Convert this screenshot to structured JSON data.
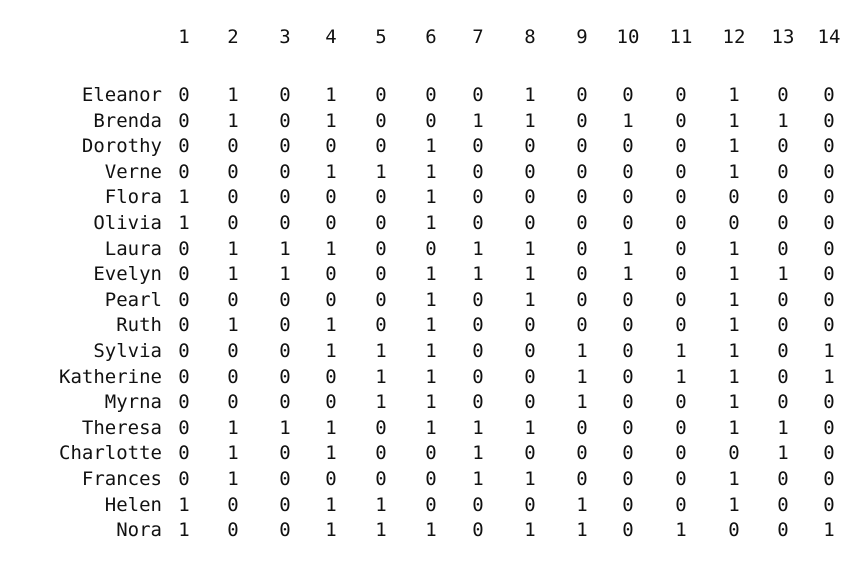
{
  "columns": [
    "1",
    "2",
    "3",
    "4",
    "5",
    "6",
    "7",
    "8",
    "9",
    "10",
    "11",
    "12",
    "13",
    "14"
  ],
  "rows": [
    {
      "name": "Eleanor",
      "values": [
        "0",
        "1",
        "0",
        "1",
        "0",
        "0",
        "0",
        "1",
        "0",
        "0",
        "0",
        "1",
        "0",
        "0"
      ]
    },
    {
      "name": "Brenda",
      "values": [
        "0",
        "1",
        "0",
        "1",
        "0",
        "0",
        "1",
        "1",
        "0",
        "1",
        "0",
        "1",
        "1",
        "0"
      ]
    },
    {
      "name": "Dorothy",
      "values": [
        "0",
        "0",
        "0",
        "0",
        "0",
        "1",
        "0",
        "0",
        "0",
        "0",
        "0",
        "1",
        "0",
        "0"
      ]
    },
    {
      "name": "Verne",
      "values": [
        "0",
        "0",
        "0",
        "1",
        "1",
        "1",
        "0",
        "0",
        "0",
        "0",
        "0",
        "1",
        "0",
        "0"
      ]
    },
    {
      "name": "Flora",
      "values": [
        "1",
        "0",
        "0",
        "0",
        "0",
        "1",
        "0",
        "0",
        "0",
        "0",
        "0",
        "0",
        "0",
        "0"
      ]
    },
    {
      "name": "Olivia",
      "values": [
        "1",
        "0",
        "0",
        "0",
        "0",
        "1",
        "0",
        "0",
        "0",
        "0",
        "0",
        "0",
        "0",
        "0"
      ]
    },
    {
      "name": "Laura",
      "values": [
        "0",
        "1",
        "1",
        "1",
        "0",
        "0",
        "1",
        "1",
        "0",
        "1",
        "0",
        "1",
        "0",
        "0"
      ]
    },
    {
      "name": "Evelyn",
      "values": [
        "0",
        "1",
        "1",
        "0",
        "0",
        "1",
        "1",
        "1",
        "0",
        "1",
        "0",
        "1",
        "1",
        "0"
      ]
    },
    {
      "name": "Pearl",
      "values": [
        "0",
        "0",
        "0",
        "0",
        "0",
        "1",
        "0",
        "1",
        "0",
        "0",
        "0",
        "1",
        "0",
        "0"
      ]
    },
    {
      "name": "Ruth",
      "values": [
        "0",
        "1",
        "0",
        "1",
        "0",
        "1",
        "0",
        "0",
        "0",
        "0",
        "0",
        "1",
        "0",
        "0"
      ]
    },
    {
      "name": "Sylvia",
      "values": [
        "0",
        "0",
        "0",
        "1",
        "1",
        "1",
        "0",
        "0",
        "1",
        "0",
        "1",
        "1",
        "0",
        "1"
      ]
    },
    {
      "name": "Katherine",
      "values": [
        "0",
        "0",
        "0",
        "0",
        "1",
        "1",
        "0",
        "0",
        "1",
        "0",
        "1",
        "1",
        "0",
        "1"
      ]
    },
    {
      "name": "Myrna",
      "values": [
        "0",
        "0",
        "0",
        "0",
        "1",
        "1",
        "0",
        "0",
        "1",
        "0",
        "0",
        "1",
        "0",
        "0"
      ]
    },
    {
      "name": "Theresa",
      "values": [
        "0",
        "1",
        "1",
        "1",
        "0",
        "1",
        "1",
        "1",
        "0",
        "0",
        "0",
        "1",
        "1",
        "0"
      ]
    },
    {
      "name": "Charlotte",
      "values": [
        "0",
        "1",
        "0",
        "1",
        "0",
        "0",
        "1",
        "0",
        "0",
        "0",
        "0",
        "0",
        "1",
        "0"
      ]
    },
    {
      "name": "Frances",
      "values": [
        "0",
        "1",
        "0",
        "0",
        "0",
        "0",
        "1",
        "1",
        "0",
        "0",
        "0",
        "1",
        "0",
        "0"
      ]
    },
    {
      "name": "Helen",
      "values": [
        "1",
        "0",
        "0",
        "1",
        "1",
        "0",
        "0",
        "0",
        "1",
        "0",
        "0",
        "1",
        "0",
        "0"
      ]
    },
    {
      "name": "Nora",
      "values": [
        "1",
        "0",
        "0",
        "1",
        "1",
        "1",
        "0",
        "1",
        "1",
        "0",
        "1",
        "0",
        "0",
        "1"
      ]
    }
  ]
}
